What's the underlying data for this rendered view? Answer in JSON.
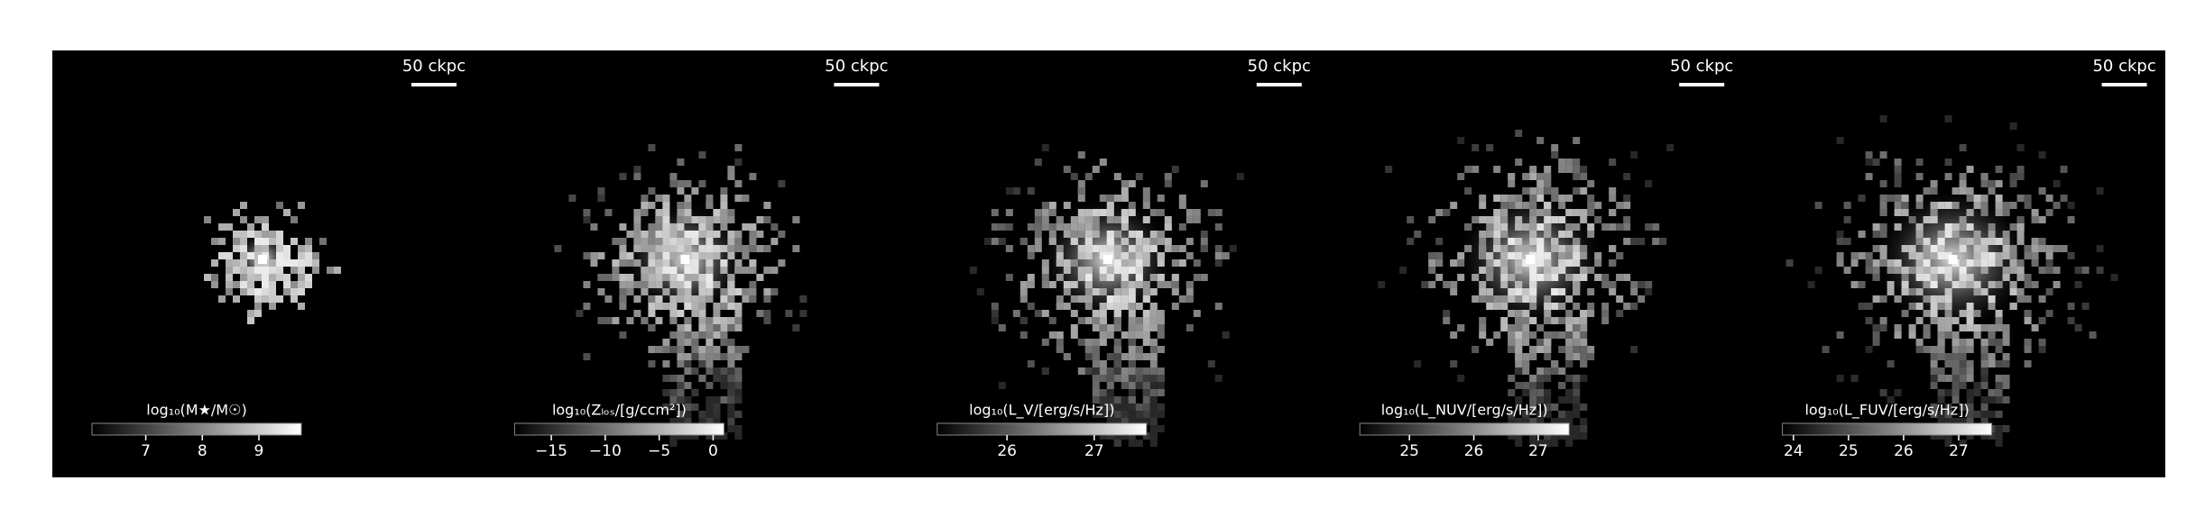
{
  "panels": [
    {
      "scale_bar_label": "50 ckpc",
      "colorbar": {
        "label": "log₁₀(M★/M☉)",
        "clim": [
          6.05,
          9.75
        ],
        "ticks": [
          7,
          8,
          9
        ]
      }
    },
    {
      "scale_bar_label": "50 ckpc",
      "colorbar": {
        "label": "log₁₀(Zₗₒₛ/[g/ccm²])",
        "clim": [
          -18.4,
          1.0
        ],
        "ticks": [
          {
            "value": -15,
            "label": "−15"
          },
          {
            "value": -10,
            "label": "−10"
          },
          {
            "value": -5,
            "label": "−5"
          },
          0
        ]
      }
    },
    {
      "scale_bar_label": "50 ckpc",
      "colorbar": {
        "label": "log₁₀(L_V/[erg/s/Hz])",
        "clim": [
          25.2,
          27.6
        ],
        "ticks": [
          26,
          27
        ]
      }
    },
    {
      "scale_bar_label": "50 ckpc",
      "colorbar": {
        "label": "log₁₀(L_NUV/[erg/s/Hz])",
        "clim": [
          24.23,
          27.48
        ],
        "ticks": [
          25,
          26,
          27
        ]
      }
    },
    {
      "scale_bar_label": "50 ckpc",
      "colorbar": {
        "label": "log₁₀(L_FUV/[erg/s/Hz])",
        "clim": [
          23.8,
          27.6
        ],
        "ticks": [
          24,
          25,
          26,
          27
        ]
      }
    }
  ]
}
